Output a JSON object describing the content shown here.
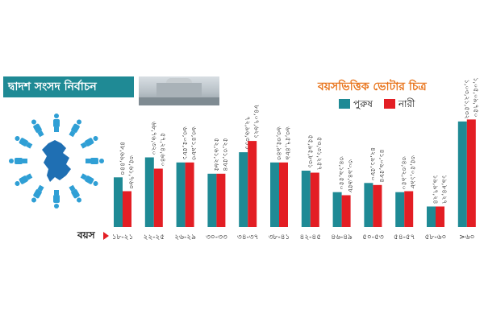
{
  "header": {
    "title": "দ্বাদশ সংসদ নির্বাচন",
    "chart_title": "বয়সভিত্তিক ভোটার চিত্র",
    "age_axis_label": "বয়স"
  },
  "colors": {
    "male": "#1f8a95",
    "female": "#e31e24",
    "title_bar": "#1f8a95",
    "chart_title": "#e8731a",
    "figures": "#2f9fd5",
    "map": "#1f6fb3"
  },
  "illustration": {
    "center": "bangladesh-map-icon",
    "ring": "person-icon"
  },
  "chart_data": {
    "type": "bar",
    "title": "বয়সভিত্তিক ভোটার চিত্র",
    "xlabel": "বয়স",
    "ylabel": "",
    "legend_position": "top-right",
    "grid": false,
    "categories": [
      "১৮-২১",
      "২২-২৫",
      "২৬-২৯",
      "৩০-৩৩",
      "৩৪-৩৭",
      "৩৮-৪১",
      "৪২-৪৫",
      "৪৬-৪৯",
      "৫০-৫৩",
      "৫৪-৫৭",
      "৫৮-৬০",
      ">৬০"
    ],
    "series": [
      {
        "name": "পুরুষ",
        "values": [
          4850000,
          6800000,
          6300000,
          5200000,
          7300000,
          6300000,
          5500000,
          3400000,
          4300000,
          3400000,
          2000000,
          10300000
        ],
        "labels": [
          "৪৮,৬৯,৪৪৩",
          "৬৮,৭৬,৩২০",
          "৬৩,০৫,৫৮১",
          "৫২,৬১,২৬৫",
          "৭২,৯৬,৩১১",
          "৬৩,৩৫,৯৪৩",
          "৫৫,৯৫,৮৩১",
          "৩৪,১৯,৫৫০",
          "৪২,৯১,৫৮০",
          "৩৪,৩২,৯৫০",
          "১৯,৯৭,২৪",
          "১,০৩,২১,৫৩২"
        ],
        "color": "#1f8a95"
      },
      {
        "name": "নারী",
        "values": [
          3500000,
          5700000,
          6300000,
          5200000,
          8400000,
          6300000,
          5300000,
          3100000,
          4100000,
          3500000,
          2000000,
          10500000
        ],
        "labels": [
          "৩৫,৬১,৭৬৩",
          "৫৭,২৪,৬৪০",
          "৬৩,৪১,৯৮৩",
          "৫২,৩১,৫৮৪",
          "৮৪,০৭,৬২১",
          "৬৩,৫৭,৪৮৯",
          "৫৩,৩১,২৫৭",
          "৩০,৯৪,৬৫৮",
          "৪১,০৯,৫৮৪",
          "৩৫,৫০,১৯৮",
          "১৯,৮৪,২৭",
          "১,০৫,০৯,৭৫০"
        ],
        "color": "#e31e24"
      }
    ],
    "ylim": [
      0,
      11000000
    ]
  }
}
